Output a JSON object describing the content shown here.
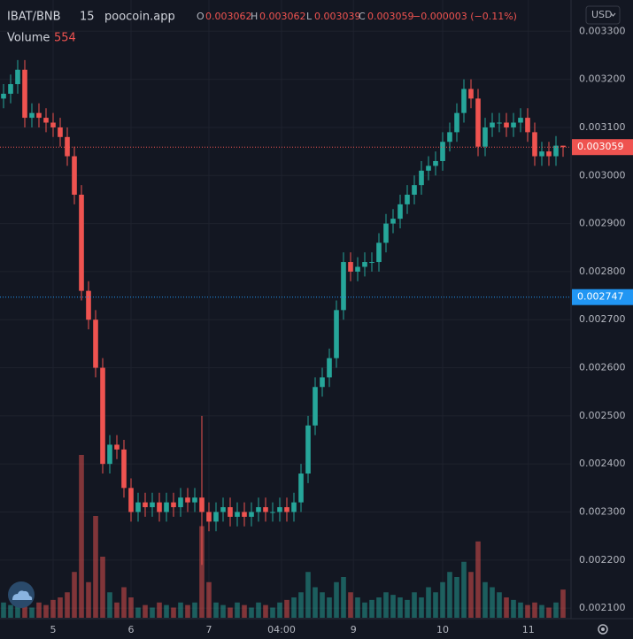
{
  "chart_data": {
    "type": "candlestick",
    "symbol": "IBAT/BNB",
    "interval": "15",
    "source": "poocoin.app",
    "ohlc_labels": [
      "O",
      "H",
      "L",
      "C"
    ],
    "change_label": "−0.000003 (−0.11%)",
    "currency": "USD",
    "up_color": "#26a69a",
    "down_color": "#ef5350",
    "x": [
      0,
      1,
      2,
      3,
      4,
      5,
      6,
      7,
      8,
      9,
      10,
      11,
      12,
      13,
      14,
      15,
      16,
      17,
      18,
      19,
      20,
      21,
      22,
      23,
      24,
      25,
      26,
      27,
      28,
      29,
      30,
      31,
      32,
      33,
      34,
      35,
      36,
      37,
      38,
      39,
      40,
      41,
      42,
      43,
      44,
      45,
      46,
      47,
      48,
      49,
      50,
      51,
      52,
      53,
      54,
      55,
      56,
      57,
      58,
      59,
      60,
      61,
      62,
      63,
      64,
      65,
      66,
      67,
      68,
      69,
      70,
      71,
      72,
      73,
      74,
      75,
      76,
      77,
      78,
      79
    ],
    "open": [
      0.00316,
      0.00317,
      0.00319,
      0.00322,
      0.00312,
      0.00313,
      0.00312,
      0.00311,
      0.0031,
      0.00308,
      0.00304,
      0.00296,
      0.00276,
      0.0027,
      0.0026,
      0.0024,
      0.00244,
      0.00243,
      0.00235,
      0.0023,
      0.00232,
      0.00231,
      0.00232,
      0.0023,
      0.00232,
      0.00231,
      0.00233,
      0.00232,
      0.00233,
      0.0023,
      0.00228,
      0.0023,
      0.00231,
      0.00229,
      0.0023,
      0.00229,
      0.0023,
      0.00231,
      0.0023,
      0.0023,
      0.00231,
      0.0023,
      0.00232,
      0.00238,
      0.00248,
      0.00256,
      0.00258,
      0.00262,
      0.00272,
      0.00282,
      0.0028,
      0.00281,
      0.00282,
      0.00282,
      0.00286,
      0.0029,
      0.00291,
      0.00294,
      0.00296,
      0.00298,
      0.00301,
      0.00302,
      0.00303,
      0.00307,
      0.00309,
      0.00313,
      0.00318,
      0.00316,
      0.00306,
      0.0031,
      0.00311,
      0.00311,
      0.0031,
      0.00311,
      0.00312,
      0.00309,
      0.00304,
      0.00305,
      0.00304,
      0.003062
    ],
    "high": [
      0.00319,
      0.00321,
      0.00324,
      0.00324,
      0.00315,
      0.00315,
      0.00314,
      0.00313,
      0.00312,
      0.0031,
      0.00306,
      0.00298,
      0.00278,
      0.00272,
      0.00262,
      0.00246,
      0.00246,
      0.00245,
      0.00237,
      0.00234,
      0.00234,
      0.00234,
      0.00234,
      0.00234,
      0.00234,
      0.00235,
      0.00235,
      0.00235,
      0.0025,
      0.00232,
      0.00232,
      0.00233,
      0.00233,
      0.00232,
      0.00232,
      0.00232,
      0.00233,
      0.00233,
      0.00232,
      0.00233,
      0.00233,
      0.00234,
      0.0024,
      0.0025,
      0.00258,
      0.0026,
      0.00264,
      0.00274,
      0.00284,
      0.00284,
      0.00283,
      0.00284,
      0.00284,
      0.00288,
      0.00292,
      0.00293,
      0.00296,
      0.00298,
      0.003,
      0.00303,
      0.00304,
      0.00305,
      0.00309,
      0.00311,
      0.00315,
      0.0032,
      0.0032,
      0.00318,
      0.00312,
      0.00313,
      0.00313,
      0.00313,
      0.00313,
      0.00314,
      0.00314,
      0.00311,
      0.00307,
      0.00307,
      0.003082,
      0.003062
    ],
    "low": [
      0.00314,
      0.00315,
      0.00317,
      0.0031,
      0.0031,
      0.0031,
      0.00309,
      0.00308,
      0.00306,
      0.00302,
      0.00294,
      0.00274,
      0.00268,
      0.00258,
      0.00238,
      0.00238,
      0.00241,
      0.00233,
      0.00228,
      0.00228,
      0.00229,
      0.00229,
      0.00228,
      0.00228,
      0.00229,
      0.00229,
      0.0023,
      0.0023,
      0.00219,
      0.00226,
      0.00226,
      0.00228,
      0.00227,
      0.00227,
      0.00227,
      0.00227,
      0.00228,
      0.00228,
      0.00228,
      0.00228,
      0.00228,
      0.00228,
      0.0023,
      0.00236,
      0.00246,
      0.00254,
      0.00256,
      0.0026,
      0.0027,
      0.00278,
      0.00278,
      0.00279,
      0.0028,
      0.0028,
      0.00284,
      0.00288,
      0.00289,
      0.00292,
      0.00294,
      0.00296,
      0.00299,
      0.003,
      0.00301,
      0.00305,
      0.00307,
      0.00311,
      0.00314,
      0.00304,
      0.00304,
      0.00308,
      0.00309,
      0.00308,
      0.00308,
      0.00309,
      0.00307,
      0.00302,
      0.00302,
      0.00302,
      0.00302,
      0.003039
    ],
    "close": [
      0.00317,
      0.00319,
      0.00322,
      0.00312,
      0.00313,
      0.00312,
      0.00311,
      0.0031,
      0.00308,
      0.00304,
      0.00296,
      0.00276,
      0.0027,
      0.0026,
      0.0024,
      0.00244,
      0.00243,
      0.00235,
      0.0023,
      0.00232,
      0.00231,
      0.00232,
      0.0023,
      0.00232,
      0.00231,
      0.00233,
      0.00232,
      0.00233,
      0.0023,
      0.00228,
      0.0023,
      0.00231,
      0.00229,
      0.0023,
      0.00229,
      0.0023,
      0.00231,
      0.0023,
      0.0023,
      0.00231,
      0.0023,
      0.00232,
      0.00238,
      0.00248,
      0.00256,
      0.00258,
      0.00262,
      0.00272,
      0.00282,
      0.0028,
      0.00281,
      0.00282,
      0.00282,
      0.00286,
      0.0029,
      0.00291,
      0.00294,
      0.00296,
      0.00298,
      0.00301,
      0.00302,
      0.00303,
      0.00307,
      0.00309,
      0.00313,
      0.00318,
      0.00316,
      0.00306,
      0.0031,
      0.00311,
      0.00311,
      0.0031,
      0.00311,
      0.00312,
      0.00309,
      0.00304,
      0.00305,
      0.00304,
      0.003062,
      0.003059
    ],
    "volume": {
      "name": "Volume",
      "ylim": [
        0,
        4000
      ],
      "values": [
        300,
        250,
        600,
        400,
        200,
        300,
        250,
        350,
        400,
        500,
        900,
        3200,
        700,
        2000,
        1200,
        500,
        300,
        600,
        400,
        200,
        250,
        200,
        300,
        250,
        200,
        300,
        250,
        300,
        1800,
        700,
        300,
        250,
        200,
        300,
        250,
        200,
        300,
        250,
        200,
        300,
        350,
        400,
        500,
        900,
        600,
        500,
        400,
        700,
        800,
        500,
        400,
        300,
        350,
        400,
        500,
        450,
        400,
        350,
        500,
        400,
        600,
        500,
        700,
        900,
        800,
        1100,
        900,
        1500,
        700,
        600,
        500,
        400,
        350,
        300,
        250,
        300,
        250,
        200,
        300,
        554
      ]
    },
    "reference_line": {
      "value": 0.002747,
      "color": "#2196f3"
    },
    "xlim": [
      -0.5,
      79.5
    ],
    "xticks": [
      {
        "value": 7,
        "label": "5"
      },
      {
        "value": 18,
        "label": "6"
      },
      {
        "value": 29,
        "label": "7"
      },
      {
        "value": 39.25,
        "label": "04:00"
      },
      {
        "value": 49.4,
        "label": "9"
      },
      {
        "value": 62,
        "label": "10"
      },
      {
        "value": 74.1,
        "label": "11"
      }
    ],
    "ylim": [
      0.00208,
      0.003365
    ],
    "yticks": [
      {
        "value": 0.0021,
        "label": "0.002100"
      },
      {
        "value": 0.0022,
        "label": "0.002200"
      },
      {
        "value": 0.0023,
        "label": "0.002300"
      },
      {
        "value": 0.0024,
        "label": "0.002400"
      },
      {
        "value": 0.0025,
        "label": "0.002500"
      },
      {
        "value": 0.0026,
        "label": "0.002600"
      },
      {
        "value": 0.0027,
        "label": "0.002700"
      },
      {
        "value": 0.0028,
        "label": "0.002800"
      },
      {
        "value": 0.0029,
        "label": "0.002900"
      },
      {
        "value": 0.003,
        "label": "0.003000"
      },
      {
        "value": 0.0031,
        "label": "0.003100"
      },
      {
        "value": 0.0032,
        "label": "0.003200"
      },
      {
        "value": 0.0033,
        "label": "0.003300"
      }
    ],
    "grid": true
  }
}
